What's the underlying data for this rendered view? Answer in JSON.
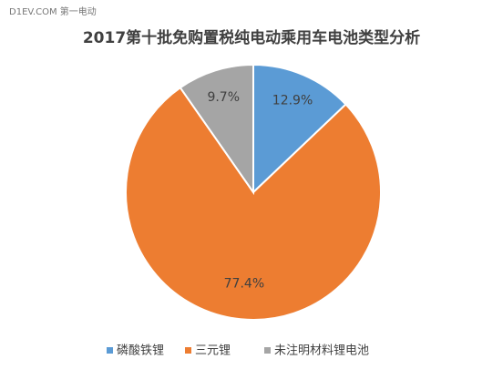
{
  "watermark": "D1EV.COM 第一电动",
  "chart_data": {
    "type": "pie",
    "title": "2017第十批免购置税纯电动乘用车电池类型分析",
    "categories": [
      "磷酸铁锂",
      "三元锂",
      "未注明材料锂电池"
    ],
    "values": [
      12.9,
      77.4,
      9.7
    ],
    "value_labels": [
      "12.9%",
      "77.4%",
      "9.7%"
    ],
    "colors": [
      "#5b9bd5",
      "#ed7d31",
      "#a5a5a5"
    ],
    "legend": "bottom"
  }
}
